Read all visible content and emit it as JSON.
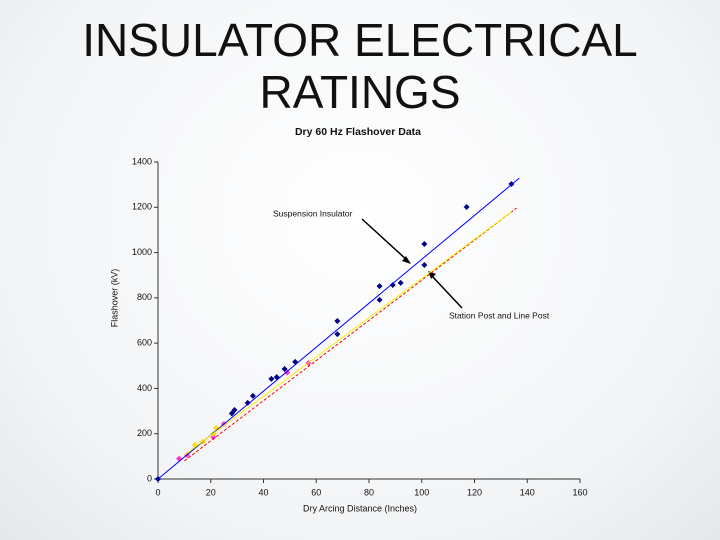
{
  "slide": {
    "title": "INSULATOR ELECTRICAL RATINGS"
  },
  "chart_data": {
    "type": "scatter",
    "title": "Dry 60 Hz Flashover Data",
    "x_label": "Dry Arcing Distance (Inches)",
    "y_label": "Flashover (kV)",
    "xlim": [
      0,
      160
    ],
    "xticks": [
      0,
      20,
      40,
      60,
      80,
      100,
      120,
      140,
      160
    ],
    "ylim": [
      0,
      1400
    ],
    "yticks": [
      0,
      200,
      400,
      600,
      800,
      1000,
      1200,
      1400
    ],
    "grid": false,
    "annotations": [
      "Suspension Insulator",
      "Station Post and Line Post"
    ],
    "series": [
      {
        "style": "marker",
        "color": "#000080",
        "x": [
          0,
          28,
          29,
          34,
          36,
          43,
          45,
          48,
          52,
          68,
          68,
          84,
          84,
          89,
          92,
          101,
          101,
          117,
          134
        ],
        "values": [
          0,
          290,
          305,
          336,
          367,
          442,
          450,
          486,
          517,
          640,
          698,
          852,
          791,
          857,
          866,
          1038,
          945,
          1201,
          1303
        ]
      },
      {
        "style": "marker",
        "color": "#ff33cc",
        "x": [
          8,
          11,
          21,
          25,
          49,
          57
        ],
        "values": [
          90,
          106,
          185,
          243,
          470,
          512
        ]
      },
      {
        "style": "marker",
        "color": "#ffdd00",
        "x": [
          14,
          17,
          21,
          22
        ],
        "values": [
          150,
          165,
          200,
          225
        ]
      },
      {
        "style": "line",
        "dash": false,
        "color": "#0000ff",
        "x": [
          0,
          137
        ],
        "values": [
          0,
          1329
        ]
      },
      {
        "style": "line",
        "dash": true,
        "color": "#ff0000",
        "x": [
          10,
          136
        ],
        "values": [
          80,
          1197
        ]
      },
      {
        "style": "line",
        "dash": false,
        "color": "#ffee00",
        "x": [
          10,
          134
        ],
        "values": [
          106,
          1180
        ]
      }
    ]
  }
}
